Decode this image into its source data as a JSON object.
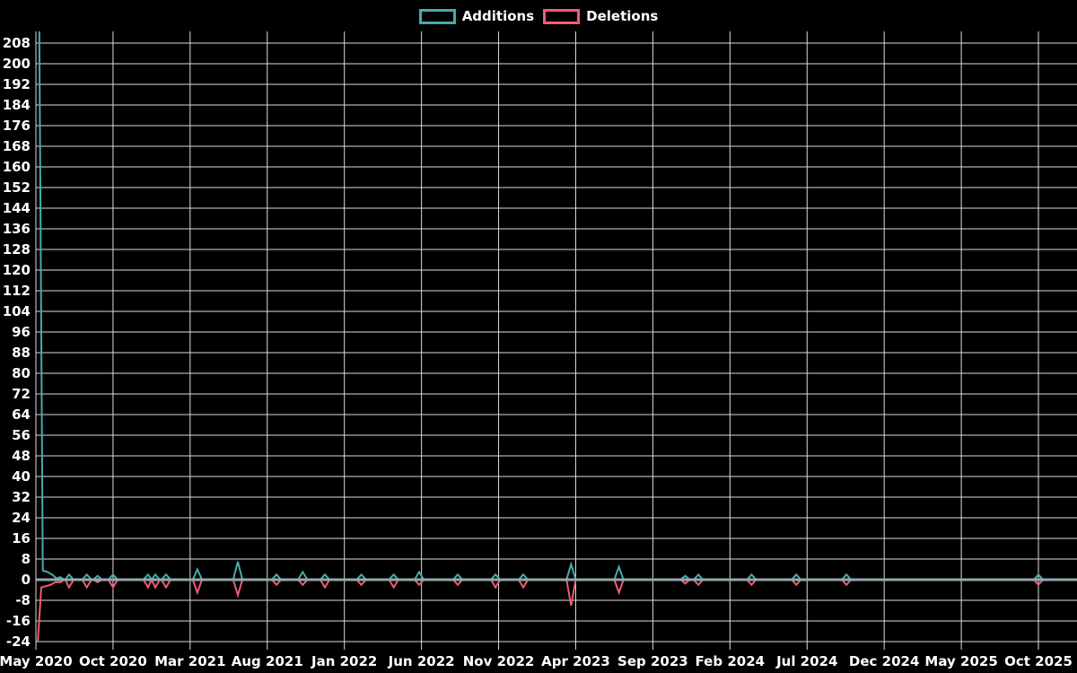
{
  "chart_data": {
    "type": "line",
    "title": "",
    "description": "Weekly additions/deletions code-frequency chart on black background",
    "legend": [
      {
        "label": "Additions",
        "color": "#45abad"
      },
      {
        "label": "Deletions",
        "color": "#f05c75"
      }
    ],
    "x_axis": {
      "unit": "months since May 2020 (tick spacing = 5 months)",
      "months_per_tick": 5,
      "tick_labels": [
        "May 2020",
        "Oct 2020",
        "Mar 2021",
        "Aug 2021",
        "Jan 2022",
        "Jun 2022",
        "Nov 2022",
        "Apr 2023",
        "Sep 2023",
        "Feb 2024",
        "Jul 2024",
        "Dec 2024",
        "May 2025",
        "Oct 2025"
      ]
    },
    "y_axis": {
      "tick_values": [
        208,
        200,
        192,
        184,
        176,
        168,
        160,
        152,
        144,
        136,
        128,
        120,
        112,
        104,
        96,
        88,
        80,
        72,
        64,
        56,
        48,
        40,
        32,
        24,
        16,
        8,
        0,
        -8,
        -16,
        -24
      ],
      "tick_step": 8,
      "range": [
        -26.5,
        213.5
      ]
    },
    "grid": true,
    "colors": {
      "background": "#000000",
      "grid_line": "#dcdcdc",
      "zero_axis_line": "#94a8ae",
      "text": "#ffffff"
    },
    "series": [
      {
        "name": "Additions",
        "color": "#45abad",
        "points": [
          [
            0.22,
            213
          ],
          [
            0.45,
            3.5
          ],
          [
            0.75,
            3
          ],
          [
            1.05,
            2
          ],
          [
            1.35,
            0.5
          ],
          [
            1.57,
            1
          ],
          [
            1.85,
            0
          ],
          [
            1.9,
            0
          ],
          [
            2.15,
            2
          ],
          [
            2.45,
            0
          ],
          [
            3.0,
            0
          ],
          [
            3.3,
            2
          ],
          [
            3.6,
            0
          ],
          [
            3.72,
            0
          ],
          [
            4.0,
            1.5
          ],
          [
            4.3,
            0
          ],
          [
            4.7,
            0
          ],
          [
            5.0,
            2
          ],
          [
            5.3,
            0
          ],
          [
            6.97,
            0
          ],
          [
            7.27,
            2
          ],
          [
            7.5,
            0
          ],
          [
            7.74,
            2
          ],
          [
            8.04,
            0
          ],
          [
            8.14,
            0
          ],
          [
            8.44,
            2
          ],
          [
            8.74,
            0
          ],
          [
            10.17,
            0
          ],
          [
            10.47,
            4
          ],
          [
            10.77,
            0
          ],
          [
            12.79,
            0
          ],
          [
            13.09,
            7
          ],
          [
            13.39,
            0
          ],
          [
            15.3,
            0
          ],
          [
            15.6,
            2
          ],
          [
            15.9,
            0
          ],
          [
            17.0,
            0
          ],
          [
            17.3,
            3
          ],
          [
            17.6,
            0
          ],
          [
            18.44,
            0
          ],
          [
            18.74,
            2
          ],
          [
            19.04,
            0
          ],
          [
            20.8,
            0
          ],
          [
            21.1,
            2
          ],
          [
            21.4,
            0
          ],
          [
            22.9,
            0
          ],
          [
            23.2,
            2
          ],
          [
            23.5,
            0
          ],
          [
            24.55,
            0
          ],
          [
            24.85,
            3
          ],
          [
            25.15,
            0
          ],
          [
            27.05,
            0
          ],
          [
            27.35,
            2
          ],
          [
            27.65,
            0
          ],
          [
            29.5,
            0
          ],
          [
            29.8,
            2
          ],
          [
            30.1,
            0
          ],
          [
            31.3,
            0
          ],
          [
            31.6,
            2
          ],
          [
            31.9,
            0
          ],
          [
            34.4,
            0
          ],
          [
            34.7,
            6
          ],
          [
            35.0,
            0
          ],
          [
            37.5,
            0
          ],
          [
            37.8,
            5
          ],
          [
            38.1,
            0
          ],
          [
            41.8,
            0
          ],
          [
            42.1,
            1.5
          ],
          [
            42.4,
            0
          ],
          [
            42.65,
            0
          ],
          [
            42.95,
            2
          ],
          [
            43.25,
            0
          ],
          [
            46.1,
            0
          ],
          [
            46.4,
            2
          ],
          [
            46.7,
            0
          ],
          [
            49.0,
            0
          ],
          [
            49.3,
            2
          ],
          [
            49.6,
            0
          ],
          [
            52.25,
            0
          ],
          [
            52.55,
            2
          ],
          [
            52.85,
            0
          ],
          [
            64.7,
            0
          ],
          [
            65.0,
            2
          ],
          [
            65.3,
            0
          ]
        ]
      },
      {
        "name": "Deletions",
        "color": "#f05c75",
        "points": [
          [
            0.12,
            -24
          ],
          [
            0.35,
            -3
          ],
          [
            0.65,
            -2.5
          ],
          [
            0.95,
            -2
          ],
          [
            1.25,
            -1
          ],
          [
            1.57,
            -1
          ],
          [
            1.85,
            0
          ],
          [
            1.9,
            0
          ],
          [
            2.15,
            -3
          ],
          [
            2.45,
            0
          ],
          [
            3.0,
            0
          ],
          [
            3.3,
            -3
          ],
          [
            3.6,
            0
          ],
          [
            3.72,
            0
          ],
          [
            4.0,
            -1
          ],
          [
            4.3,
            0
          ],
          [
            4.7,
            0
          ],
          [
            5.0,
            -3
          ],
          [
            5.3,
            0
          ],
          [
            6.97,
            0
          ],
          [
            7.27,
            -3
          ],
          [
            7.5,
            0
          ],
          [
            7.74,
            -3
          ],
          [
            8.04,
            0
          ],
          [
            8.14,
            0
          ],
          [
            8.44,
            -3
          ],
          [
            8.74,
            0
          ],
          [
            10.17,
            0
          ],
          [
            10.47,
            -5
          ],
          [
            10.77,
            0
          ],
          [
            12.79,
            0
          ],
          [
            13.09,
            -6
          ],
          [
            13.39,
            0
          ],
          [
            15.3,
            0
          ],
          [
            15.6,
            -2
          ],
          [
            15.9,
            0
          ],
          [
            17.0,
            0
          ],
          [
            17.3,
            -2
          ],
          [
            17.6,
            0
          ],
          [
            18.44,
            0
          ],
          [
            18.74,
            -3
          ],
          [
            19.04,
            0
          ],
          [
            20.8,
            0
          ],
          [
            21.1,
            -2
          ],
          [
            21.4,
            0
          ],
          [
            22.9,
            0
          ],
          [
            23.2,
            -3
          ],
          [
            23.5,
            0
          ],
          [
            24.55,
            0
          ],
          [
            24.85,
            -2
          ],
          [
            25.15,
            0
          ],
          [
            27.05,
            0
          ],
          [
            27.35,
            -2
          ],
          [
            27.65,
            0
          ],
          [
            29.5,
            0
          ],
          [
            29.8,
            -3
          ],
          [
            30.1,
            0
          ],
          [
            31.3,
            0
          ],
          [
            31.6,
            -3
          ],
          [
            31.9,
            0
          ],
          [
            34.4,
            0
          ],
          [
            34.7,
            -10
          ],
          [
            35.0,
            0
          ],
          [
            37.5,
            0
          ],
          [
            37.8,
            -5
          ],
          [
            38.1,
            0
          ],
          [
            41.8,
            0
          ],
          [
            42.1,
            -1.5
          ],
          [
            42.4,
            0
          ],
          [
            42.65,
            0
          ],
          [
            42.95,
            -2
          ],
          [
            43.25,
            0
          ],
          [
            46.1,
            0
          ],
          [
            46.4,
            -2
          ],
          [
            46.7,
            0
          ],
          [
            49.0,
            0
          ],
          [
            49.3,
            -2
          ],
          [
            49.6,
            0
          ],
          [
            52.25,
            0
          ],
          [
            52.55,
            -2
          ],
          [
            52.85,
            0
          ],
          [
            64.7,
            0
          ],
          [
            65.0,
            -2
          ],
          [
            65.3,
            0
          ]
        ]
      }
    ],
    "legend_position": "top-center"
  }
}
